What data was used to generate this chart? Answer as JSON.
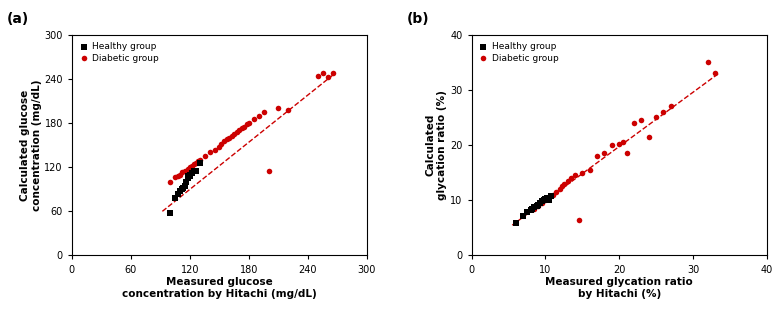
{
  "panel_a": {
    "title_label": "(a)",
    "xlabel": "Measured glucose\nconcentration by Hitachi (mg/dL)",
    "ylabel": "Calculated glucose\nconcentration (mg/dL)",
    "xlim": [
      0,
      300
    ],
    "ylim": [
      0,
      300
    ],
    "xticks": [
      0,
      60,
      120,
      180,
      240,
      300
    ],
    "yticks": [
      0,
      60,
      120,
      180,
      240,
      300
    ],
    "healthy_x": [
      100,
      105,
      108,
      110,
      112,
      113,
      115,
      116,
      118,
      118,
      120,
      120,
      122,
      124,
      126,
      130
    ],
    "healthy_y": [
      58,
      78,
      83,
      88,
      90,
      92,
      95,
      100,
      105,
      108,
      108,
      110,
      112,
      115,
      115,
      125
    ],
    "diabetic_x": [
      100,
      105,
      108,
      110,
      112,
      115,
      118,
      120,
      122,
      124,
      126,
      128,
      130,
      135,
      140,
      145,
      150,
      152,
      155,
      158,
      160,
      163,
      165,
      168,
      170,
      173,
      175,
      178,
      180,
      185,
      190,
      195,
      200,
      210,
      220,
      250,
      255,
      260,
      265
    ],
    "diabetic_y": [
      100,
      106,
      108,
      110,
      113,
      115,
      118,
      120,
      122,
      124,
      126,
      128,
      130,
      135,
      140,
      143,
      148,
      152,
      155,
      158,
      160,
      163,
      165,
      168,
      170,
      173,
      175,
      178,
      180,
      185,
      190,
      195,
      115,
      200,
      198,
      244,
      248,
      242,
      248
    ],
    "fit_x": [
      92,
      268
    ],
    "fit_y": [
      60,
      248
    ]
  },
  "panel_b": {
    "title_label": "(b)",
    "xlabel": "Measured glycation ratio\nby Hitachi (%)",
    "ylabel": "Calculated\nglycation ratio (%)",
    "xlim": [
      0,
      40
    ],
    "ylim": [
      0,
      40
    ],
    "xticks": [
      0,
      10,
      20,
      30,
      40
    ],
    "yticks": [
      0,
      10,
      20,
      30,
      40
    ],
    "healthy_x": [
      6.0,
      7.0,
      7.5,
      8.0,
      8.2,
      8.5,
      8.8,
      9.0,
      9.2,
      9.5,
      9.8,
      10.0,
      10.2,
      10.5,
      10.8
    ],
    "healthy_y": [
      5.8,
      7.2,
      7.8,
      8.2,
      8.5,
      8.8,
      9.0,
      9.2,
      9.5,
      9.8,
      10.0,
      10.2,
      10.5,
      10.0,
      10.8
    ],
    "diabetic_x": [
      8.5,
      9.0,
      9.5,
      10.0,
      10.5,
      11.0,
      11.5,
      12.0,
      12.2,
      12.5,
      13.0,
      13.5,
      14.0,
      14.5,
      15.0,
      16.0,
      17.0,
      18.0,
      19.0,
      20.0,
      20.5,
      21.0,
      22.0,
      23.0,
      24.0,
      25.0,
      26.0,
      27.0,
      32.0,
      33.0
    ],
    "diabetic_y": [
      8.5,
      9.0,
      9.5,
      10.0,
      10.5,
      11.0,
      11.5,
      12.0,
      12.5,
      13.0,
      13.5,
      14.0,
      14.5,
      6.5,
      15.0,
      15.5,
      18.0,
      18.5,
      20.0,
      20.2,
      20.5,
      18.5,
      24.0,
      24.5,
      21.5,
      25.0,
      26.0,
      27.0,
      35.0,
      33.0
    ],
    "fit_x": [
      5.5,
      33.5
    ],
    "fit_y": [
      5.5,
      33.0
    ]
  },
  "healthy_color": "#000000",
  "diabetic_color": "#cc0000",
  "fit_color": "#cc0000",
  "marker_size_sq": 16,
  "legend_fontsize": 6.5,
  "axis_fontsize": 7.5,
  "tick_fontsize": 7.0,
  "label_fontsize": 10
}
